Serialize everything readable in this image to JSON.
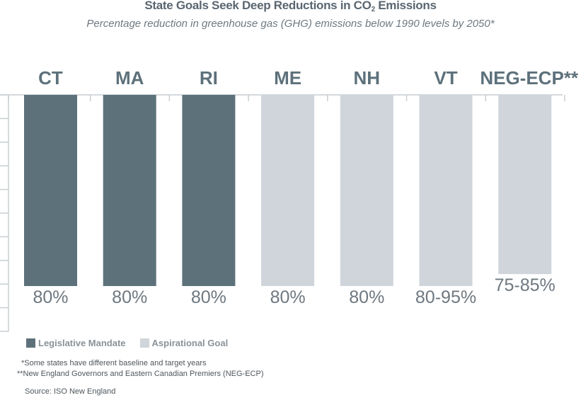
{
  "header": {
    "title_prefix": "State Goals Seek Deep Reductions in CO",
    "title_sub": "2",
    "title_suffix": " Emissions",
    "subtitle": "Percentage reduction in greenhouse gas (GHG) emissions below 1990 levels by 2050*"
  },
  "chart_data": {
    "type": "bar",
    "categories": [
      "CT",
      "MA",
      "RI",
      "ME",
      "NH",
      "VT",
      "NEG-ECP**"
    ],
    "value_labels": [
      "80%",
      "80%",
      "80%",
      "80%",
      "80%",
      "80-95%",
      "75-85%"
    ],
    "values": [
      80,
      80,
      80,
      80,
      80,
      80,
      75
    ],
    "kinds": [
      "mandate",
      "mandate",
      "mandate",
      "aspirational",
      "aspirational",
      "aspirational",
      "aspirational"
    ],
    "orientation": "downward from top axis",
    "ylim": [
      0,
      100
    ],
    "colors": {
      "mandate": "#5d717b",
      "aspirational": "#cfd5da",
      "label": "#6e7880",
      "axis": "#c8ced2"
    },
    "legend": [
      {
        "key": "mandate",
        "label": "Legislative Mandate"
      },
      {
        "key": "aspirational",
        "label": "Aspirational Goal"
      }
    ]
  },
  "footnotes": {
    "note1": "*Some states have different baseline and target years",
    "note2": "**New England Governors and Eastern Canadian Premiers (NEG-ECP)",
    "source": "Source: ISO New England"
  }
}
